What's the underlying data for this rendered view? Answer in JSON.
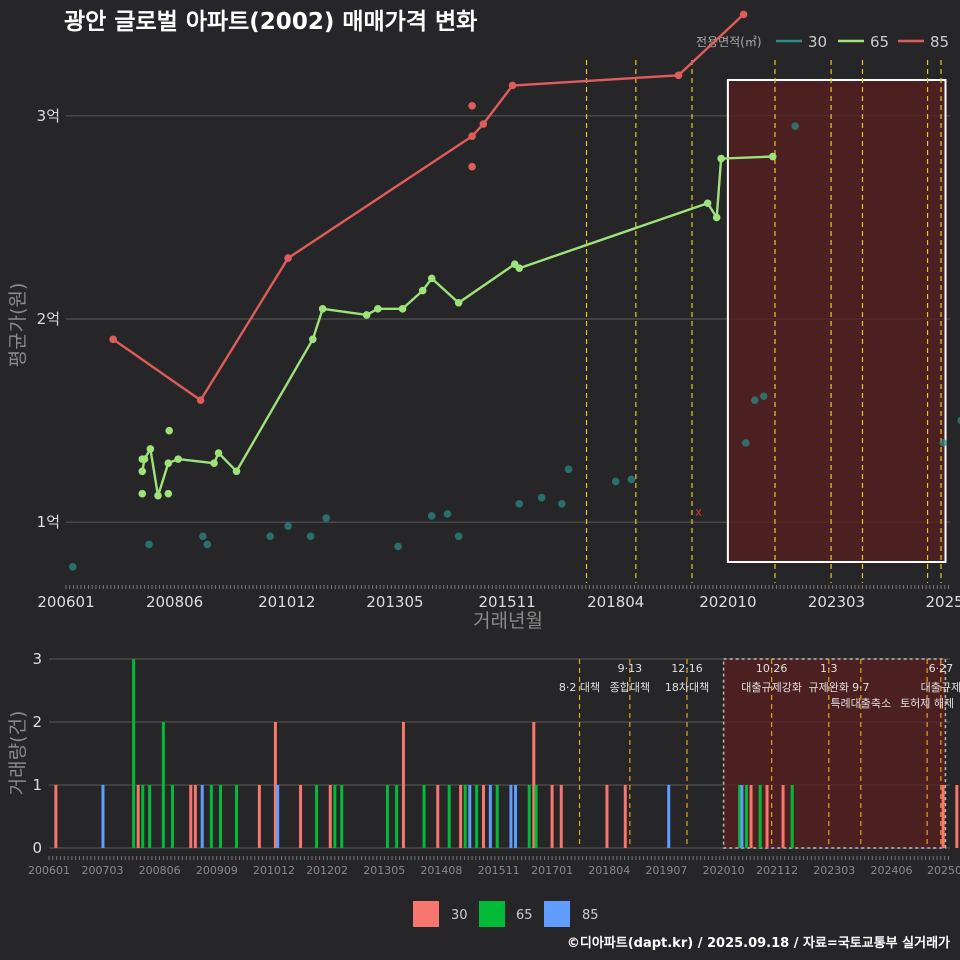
{
  "title": "광안 글로벌 아파트(2002) 매매가격 변화",
  "caption": "©디아파트(dapt.kr) / 2025.09.18 / 자료=국토교통부 실거래가",
  "colors": {
    "line30": "#2a8f8c",
    "line65": "#9ee27a",
    "line85": "#e05c5c",
    "bar30": "#f8766d",
    "bar65": "#00ba38",
    "bar85": "#619cff",
    "policy": "#e8c62a",
    "shade": "#5a1e1e"
  },
  "chart_data": [
    {
      "type": "line",
      "title": "광안 글로벌 아파트(2002) 매매가격 변화",
      "xlabel": "거래년월",
      "ylabel": "평균가(원)",
      "x_unit": "year-decimal",
      "x_range": [
        2006.0,
        2025.7
      ],
      "y_range_eok": [
        0.7,
        3.3
      ],
      "y_ticks": [
        {
          "v": 1,
          "label": "1억"
        },
        {
          "v": 2,
          "label": "2억"
        },
        {
          "v": 3,
          "label": "3억"
        }
      ],
      "x_ticks": [
        {
          "v": 2006.0,
          "label": "200601"
        },
        {
          "v": 2008.42,
          "label": "200806"
        },
        {
          "v": 2010.92,
          "label": "201012"
        },
        {
          "v": 2013.33,
          "label": "201305"
        },
        {
          "v": 2015.83,
          "label": "201511"
        },
        {
          "v": 2018.25,
          "label": "201804"
        },
        {
          "v": 2020.75,
          "label": "202010"
        },
        {
          "v": 2023.17,
          "label": "202303"
        },
        {
          "v": 2025.58,
          "label": "2025"
        }
      ],
      "legend_title": "전용면적(㎡)",
      "legend": [
        "30",
        "65",
        "85"
      ],
      "series": [
        {
          "name": "30",
          "points": [
            [
              2006.15,
              0.78
            ],
            [
              2007.85,
              0.89
            ],
            [
              2009.05,
              0.93
            ],
            [
              2009.15,
              0.89
            ],
            [
              2010.55,
              0.93
            ],
            [
              2010.95,
              0.98
            ],
            [
              2011.45,
              0.93
            ],
            [
              2011.8,
              1.02
            ],
            [
              2013.4,
              0.88
            ],
            [
              2014.15,
              1.03
            ],
            [
              2014.5,
              1.04
            ],
            [
              2014.75,
              0.93
            ],
            [
              2016.1,
              1.09
            ],
            [
              2016.6,
              1.12
            ],
            [
              2017.05,
              1.09
            ],
            [
              2017.2,
              1.26
            ],
            [
              2018.25,
              1.2
            ],
            [
              2018.6,
              1.21
            ],
            [
              2021.15,
              1.39
            ],
            [
              2021.35,
              1.6
            ],
            [
              2021.55,
              1.62
            ],
            [
              2022.25,
              2.95
            ],
            [
              2025.55,
              1.39
            ],
            [
              2025.95,
              1.5
            ]
          ],
          "markers_only": true
        },
        {
          "name": "65",
          "points": [
            [
              2007.7,
              1.25
            ],
            [
              2007.75,
              1.31
            ],
            [
              2007.88,
              1.36
            ],
            [
              2008.05,
              1.13
            ],
            [
              2008.28,
              1.29
            ],
            [
              2008.5,
              1.31
            ],
            [
              2009.3,
              1.29
            ],
            [
              2009.4,
              1.34
            ],
            [
              2009.8,
              1.25
            ],
            [
              2011.5,
              1.9
            ],
            [
              2011.72,
              2.05
            ],
            [
              2012.7,
              2.02
            ],
            [
              2012.95,
              2.05
            ],
            [
              2013.5,
              2.05
            ],
            [
              2013.95,
              2.14
            ],
            [
              2014.15,
              2.2
            ],
            [
              2014.75,
              2.08
            ],
            [
              2016.0,
              2.27
            ],
            [
              2016.1,
              2.25
            ],
            [
              2020.3,
              2.57
            ],
            [
              2020.5,
              2.5
            ],
            [
              2020.6,
              2.79
            ],
            [
              2021.75,
              2.8
            ]
          ],
          "extra_points": [
            [
              2007.7,
              1.14
            ],
            [
              2007.7,
              1.31
            ],
            [
              2008.28,
              1.14
            ],
            [
              2008.3,
              1.45
            ]
          ]
        },
        {
          "name": "85",
          "points": [
            [
              2007.05,
              1.9
            ],
            [
              2009.0,
              1.6
            ],
            [
              2010.95,
              2.3
            ],
            [
              2015.05,
              2.9
            ],
            [
              2015.3,
              2.96
            ],
            [
              2015.95,
              3.15
            ],
            [
              2019.65,
              3.2
            ],
            [
              2021.1,
              3.5
            ]
          ],
          "extra_points": [
            [
              2015.05,
              3.05
            ],
            [
              2015.05,
              2.75
            ]
          ]
        }
      ],
      "markers": [
        {
          "x": 2020.1,
          "y": 1.05,
          "label": "x"
        }
      ],
      "highlight_range": [
        2020.75,
        2025.6
      ]
    },
    {
      "type": "bar",
      "xlabel": "",
      "ylabel": "거래량(건)",
      "y_range": [
        0,
        3
      ],
      "y_ticks": [
        0,
        1,
        2,
        3
      ],
      "x_ticks": [
        {
          "v": 2006.0,
          "label": "200601"
        },
        {
          "v": 2007.17,
          "label": "200703"
        },
        {
          "v": 2008.42,
          "label": "200806"
        },
        {
          "v": 2009.67,
          "label": "200909"
        },
        {
          "v": 2010.92,
          "label": "201012"
        },
        {
          "v": 2012.08,
          "label": "201202"
        },
        {
          "v": 2013.33,
          "label": "201305"
        },
        {
          "v": 2014.58,
          "label": "201408"
        },
        {
          "v": 2015.83,
          "label": "201511"
        },
        {
          "v": 2017.0,
          "label": "201701"
        },
        {
          "v": 2018.25,
          "label": "201804"
        },
        {
          "v": 2019.5,
          "label": "201907"
        },
        {
          "v": 2020.75,
          "label": "202010"
        },
        {
          "v": 2021.92,
          "label": "202112"
        },
        {
          "v": 2023.17,
          "label": "202303"
        },
        {
          "v": 2024.42,
          "label": "202406"
        },
        {
          "v": 2025.58,
          "label": "20250"
        }
      ],
      "legend": [
        "30",
        "65",
        "85"
      ],
      "bars": [
        {
          "x": 2006.15,
          "s": "30",
          "v": 1
        },
        {
          "x": 2007.18,
          "s": "85",
          "v": 1
        },
        {
          "x": 2007.85,
          "s": "65",
          "v": 3
        },
        {
          "x": 2007.95,
          "s": "30",
          "v": 1
        },
        {
          "x": 2008.05,
          "s": "65",
          "v": 1
        },
        {
          "x": 2008.2,
          "s": "65",
          "v": 1
        },
        {
          "x": 2008.5,
          "s": "65",
          "v": 2
        },
        {
          "x": 2008.7,
          "s": "65",
          "v": 1
        },
        {
          "x": 2009.1,
          "s": "30",
          "v": 1
        },
        {
          "x": 2009.2,
          "s": "30",
          "v": 1
        },
        {
          "x": 2009.35,
          "s": "85",
          "v": 1
        },
        {
          "x": 2009.55,
          "s": "65",
          "v": 1
        },
        {
          "x": 2009.75,
          "s": "65",
          "v": 1
        },
        {
          "x": 2010.1,
          "s": "65",
          "v": 1
        },
        {
          "x": 2010.6,
          "s": "30",
          "v": 1
        },
        {
          "x": 2010.95,
          "s": "30",
          "v": 2
        },
        {
          "x": 2011.0,
          "s": "85",
          "v": 1
        },
        {
          "x": 2011.5,
          "s": "30",
          "v": 1
        },
        {
          "x": 2011.85,
          "s": "65",
          "v": 1
        },
        {
          "x": 2012.15,
          "s": "30",
          "v": 1
        },
        {
          "x": 2012.25,
          "s": "65",
          "v": 1
        },
        {
          "x": 2012.4,
          "s": "65",
          "v": 1
        },
        {
          "x": 2013.4,
          "s": "65",
          "v": 1
        },
        {
          "x": 2013.6,
          "s": "65",
          "v": 1
        },
        {
          "x": 2013.75,
          "s": "30",
          "v": 2
        },
        {
          "x": 2014.2,
          "s": "65",
          "v": 1
        },
        {
          "x": 2014.5,
          "s": "30",
          "v": 1
        },
        {
          "x": 2014.75,
          "s": "65",
          "v": 1
        },
        {
          "x": 2015.0,
          "s": "30",
          "v": 1
        },
        {
          "x": 2015.1,
          "s": "65",
          "v": 1
        },
        {
          "x": 2015.2,
          "s": "85",
          "v": 1
        },
        {
          "x": 2015.35,
          "s": "65",
          "v": 1
        },
        {
          "x": 2015.5,
          "s": "30",
          "v": 1
        },
        {
          "x": 2015.65,
          "s": "85",
          "v": 1
        },
        {
          "x": 2015.8,
          "s": "65",
          "v": 1
        },
        {
          "x": 2016.1,
          "s": "85",
          "v": 1
        },
        {
          "x": 2016.2,
          "s": "85",
          "v": 1
        },
        {
          "x": 2016.5,
          "s": "65",
          "v": 1
        },
        {
          "x": 2016.6,
          "s": "30",
          "v": 2
        },
        {
          "x": 2016.65,
          "s": "65",
          "v": 1
        },
        {
          "x": 2017.0,
          "s": "30",
          "v": 1
        },
        {
          "x": 2017.2,
          "s": "30",
          "v": 1
        },
        {
          "x": 2018.2,
          "s": "30",
          "v": 1
        },
        {
          "x": 2018.6,
          "s": "30",
          "v": 1
        },
        {
          "x": 2019.55,
          "s": "85",
          "v": 1
        },
        {
          "x": 2021.1,
          "s": "65",
          "v": 1
        },
        {
          "x": 2021.15,
          "s": "85",
          "v": 1
        },
        {
          "x": 2021.25,
          "s": "65",
          "v": 1
        },
        {
          "x": 2021.35,
          "s": "30",
          "v": 1
        },
        {
          "x": 2021.55,
          "s": "65",
          "v": 1
        },
        {
          "x": 2021.7,
          "s": "30",
          "v": 1
        },
        {
          "x": 2022.05,
          "s": "30",
          "v": 1
        },
        {
          "x": 2022.25,
          "s": "65",
          "v": 1
        },
        {
          "x": 2025.55,
          "s": "30",
          "v": 1
        },
        {
          "x": 2025.85,
          "s": "30",
          "v": 1
        }
      ],
      "highlight_range": [
        2020.75,
        2025.6
      ]
    }
  ],
  "policy_lines": [
    2017.6,
    2018.7,
    2019.95,
    2021.8,
    2023.05,
    2023.75,
    2025.2,
    2025.5
  ],
  "policy_labels": [
    {
      "x": 2017.6,
      "lines": [
        "8·2 대책"
      ]
    },
    {
      "x": 2018.7,
      "lines": [
        "9·13",
        "종합대책"
      ]
    },
    {
      "x": 2019.95,
      "lines": [
        "12·16",
        "18차대책"
      ]
    },
    {
      "x": 2021.8,
      "lines": [
        "10·26",
        "대출규제강화"
      ]
    },
    {
      "x": 2023.05,
      "lines": [
        "1·3",
        "규제완화"
      ]
    },
    {
      "x": 2023.75,
      "lines": [
        "9·7",
        "특례대출축소"
      ]
    },
    {
      "x": 2025.2,
      "lines": [
        "토허제 해제"
      ]
    },
    {
      "x": 2025.5,
      "lines": [
        "6·27",
        "대출규제"
      ]
    }
  ]
}
